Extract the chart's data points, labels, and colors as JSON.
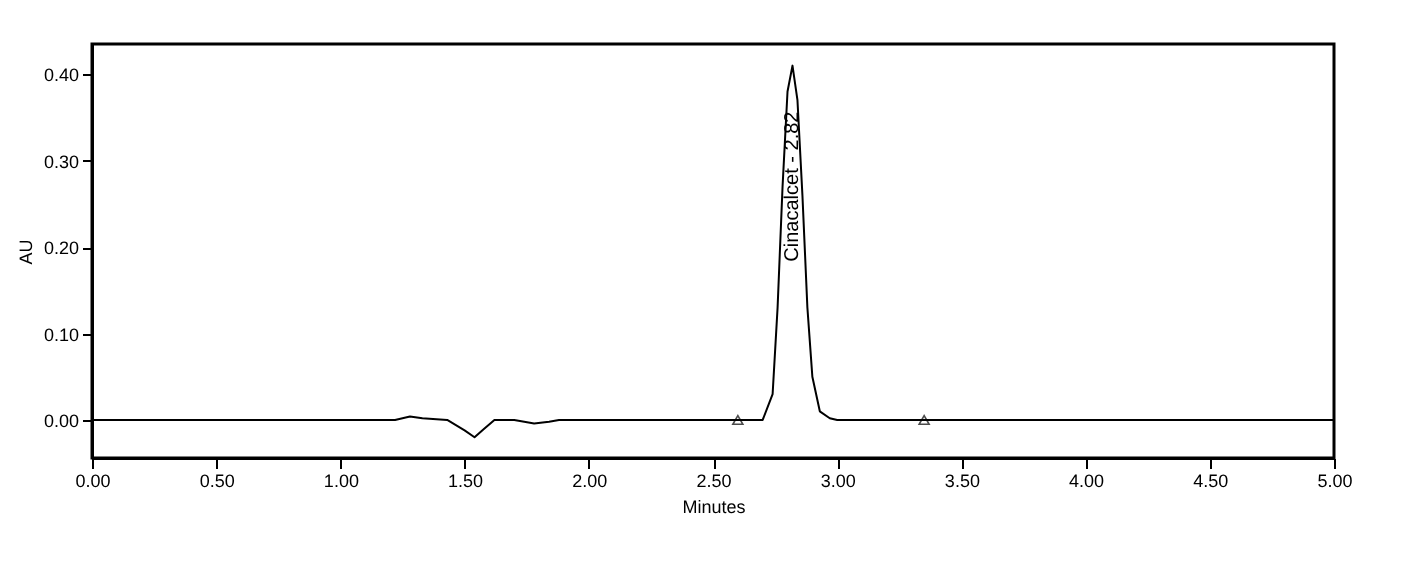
{
  "chart_data": {
    "type": "line",
    "xlabel": "Minutes",
    "ylabel": "AU",
    "xlim": [
      0,
      5
    ],
    "ylim": [
      -0.044,
      0.435
    ],
    "xticks": [
      {
        "value": 0,
        "label": "0.00"
      },
      {
        "value": 0.5,
        "label": "0.50"
      },
      {
        "value": 1,
        "label": "1.00"
      },
      {
        "value": 1.5,
        "label": "1.50"
      },
      {
        "value": 2,
        "label": "2.00"
      },
      {
        "value": 2.5,
        "label": "2.50"
      },
      {
        "value": 3,
        "label": "3.00"
      },
      {
        "value": 3.5,
        "label": "3.50"
      },
      {
        "value": 4,
        "label": "4.00"
      },
      {
        "value": 4.5,
        "label": "4.50"
      },
      {
        "value": 5,
        "label": "5.00"
      }
    ],
    "yticks": [
      {
        "value": 0,
        "label": "0.00"
      },
      {
        "value": 0.1,
        "label": "0.10"
      },
      {
        "value": 0.2,
        "label": "0.20"
      },
      {
        "value": 0.3,
        "label": "0.30"
      },
      {
        "value": 0.4,
        "label": "0.40"
      }
    ],
    "grid": false,
    "series": [
      {
        "color": "#000000",
        "x": [
          0,
          1.22,
          1.28,
          1.33,
          1.43,
          1.5,
          1.54,
          1.58,
          1.62,
          1.7,
          1.78,
          1.84,
          1.88,
          2.7,
          2.74,
          2.76,
          2.78,
          2.8,
          2.82,
          2.84,
          2.86,
          2.88,
          2.9,
          2.93,
          2.97,
          3.0,
          5
        ],
        "values": [
          0,
          0,
          0.004,
          0.002,
          0,
          -0.012,
          -0.02,
          -0.01,
          0,
          0,
          -0.004,
          -0.002,
          0,
          0,
          0.03,
          0.13,
          0.27,
          0.38,
          0.41,
          0.37,
          0.26,
          0.13,
          0.05,
          0.01,
          0.002,
          0,
          0
        ]
      },
      {
        "type": "scatter",
        "marker": "triangle",
        "color": "#000000",
        "x": [
          2.6,
          3.35
        ],
        "values": [
          0,
          0
        ]
      }
    ],
    "annotations": [
      {
        "text": "Cinacalcet - 2.82",
        "x": 2.82,
        "y": 0.27
      }
    ]
  }
}
